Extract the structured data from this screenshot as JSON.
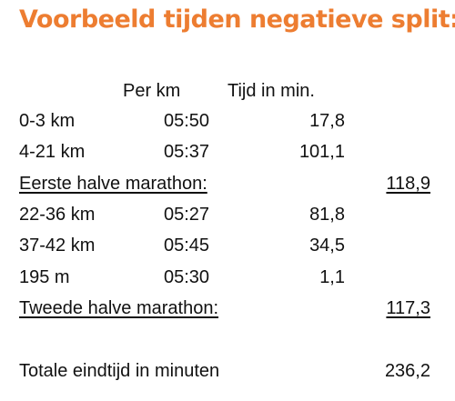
{
  "title": "Voorbeeld tijden negatieve split:",
  "accent_color": "#ED7D31",
  "header": {
    "per_km": "Per km",
    "tijd": "Tijd in min."
  },
  "rows": [
    {
      "label": "0-3 km",
      "pace": "05:50",
      "time": "17,8"
    },
    {
      "label": "4-21 km",
      "pace": "05:37",
      "time": "101,1"
    },
    {
      "label": "22-36 km",
      "pace": "05:27",
      "time": "81,8"
    },
    {
      "label": "37-42 km",
      "pace": "05:45",
      "time": "34,5"
    },
    {
      "label": "195 m",
      "pace": "05:30",
      "time": "1,1"
    }
  ],
  "first_half": {
    "label": "Eerste halve marathon:",
    "total": "118,9"
  },
  "second_half": {
    "label": "Tweede halve marathon:",
    "total": "117,3"
  },
  "grand_total": {
    "label": "Totale eindtijd in minuten",
    "value": "236,2"
  }
}
